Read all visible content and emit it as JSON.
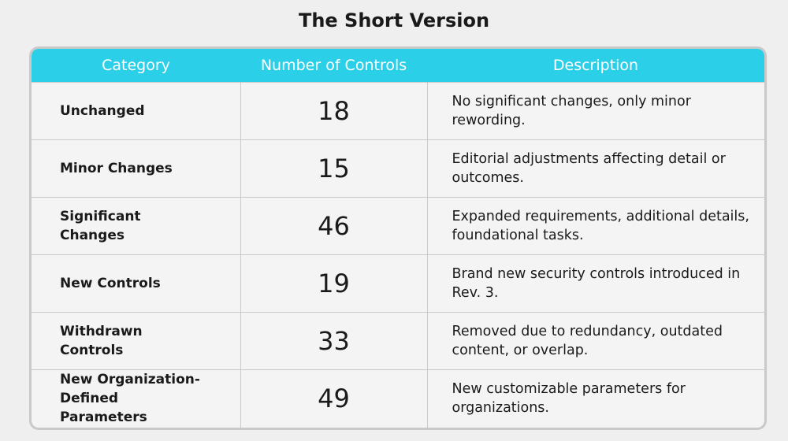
{
  "title": "The Short Version",
  "table": {
    "header": [
      "Category",
      "Number of Controls",
      "Description"
    ],
    "rows": [
      [
        "Unchanged",
        18,
        "No significant changes, only minor rewording."
      ],
      [
        "Minor Changes",
        15,
        "Editorial adjustments affecting detail or outcomes."
      ],
      [
        "Significant Changes",
        46,
        "Expanded requirements, additional details, foundational tasks."
      ],
      [
        "New Controls",
        19,
        "Brand new security controls introduced in Rev. 3."
      ],
      [
        "Withdrawn Controls",
        33,
        "Removed due to redundancy, outdated content, or overlap."
      ],
      [
        "New Organization-Defined Parameters",
        49,
        "New customizable parameters for organizations."
      ]
    ]
  }
}
